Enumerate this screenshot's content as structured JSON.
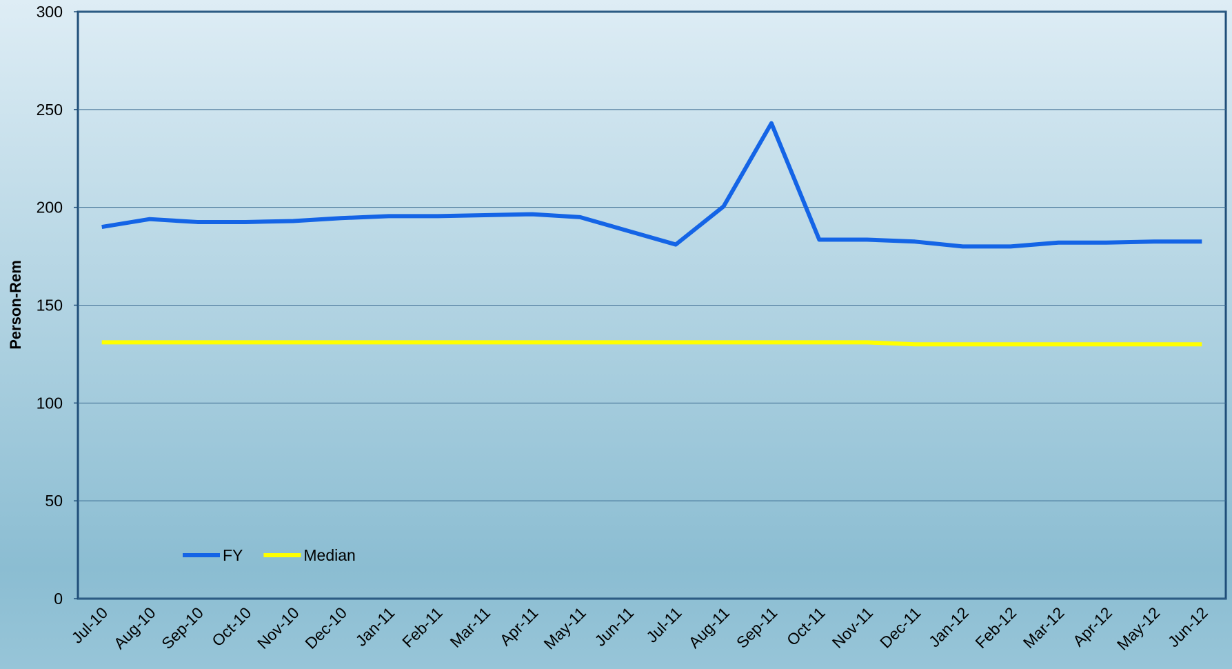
{
  "chart_data": {
    "type": "line",
    "y_label": "Person-Rem",
    "categories": [
      "Jul-10",
      "Aug-10",
      "Sep-10",
      "Oct-10",
      "Nov-10",
      "Dec-10",
      "Jan-11",
      "Feb-11",
      "Mar-11",
      "Apr-11",
      "May-11",
      "Jun-11",
      "Jul-11",
      "Aug-11",
      "Sep-11",
      "Oct-11",
      "Nov-11",
      "Dec-11",
      "Jan-12",
      "Feb-12",
      "Mar-12",
      "Apr-12",
      "May-12",
      "Jun-12"
    ],
    "series": [
      {
        "name": "FY",
        "color": "#1464e6",
        "values": [
          190,
          194,
          192.5,
          192.5,
          193,
          194.5,
          195.5,
          195.5,
          196,
          196.5,
          195,
          188,
          181,
          200.5,
          243,
          183.5,
          183.5,
          182.5,
          180,
          180,
          182,
          182,
          182.5,
          182.5
        ]
      },
      {
        "name": "Median",
        "color": "#ffff00",
        "values": [
          131,
          131,
          131,
          131,
          131,
          131,
          131,
          131,
          131,
          131,
          131,
          131,
          131,
          131,
          131,
          131,
          131,
          130,
          130,
          130,
          130,
          130,
          130,
          130
        ]
      }
    ],
    "ylim": [
      0,
      300
    ],
    "yticks": [
      0,
      50,
      100,
      150,
      200,
      250,
      300
    ],
    "grid": true,
    "legend": "lower left"
  }
}
